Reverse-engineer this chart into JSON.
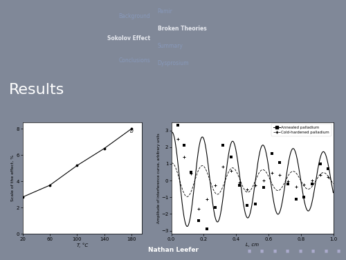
{
  "slide_bg": "#808898",
  "header_bg": "#4a5068",
  "footer_bg": "#383d55",
  "title_bar_bg": "#5a6078",
  "title_text": "Results",
  "title_color": "#ffffff",
  "title_fontsize": 16,
  "header_left_items": [
    "Background",
    "Sokolov Effect",
    "Conclusions"
  ],
  "header_right_items": [
    "Pamir",
    "Broken Theories",
    "Summary",
    "Dysprosium"
  ],
  "header_active_left": "Sokolov Effect",
  "header_active_right": "Broken Theories",
  "footer_text": "Nathan Leefer",
  "plot1": {
    "x": [
      20,
      60,
      100,
      140,
      180
    ],
    "y": [
      2.8,
      3.7,
      5.2,
      6.5,
      8.0
    ],
    "xlabel": "T, °C",
    "ylabel": "Scale of the effect, %",
    "xlim": [
      20,
      195
    ],
    "ylim": [
      0,
      8.5
    ],
    "xticks": [
      20,
      60,
      100,
      140,
      180
    ],
    "yticks": [
      0,
      2,
      4,
      6,
      8
    ],
    "label": "b"
  },
  "plot2": {
    "x_annealed_pts": [
      0.04,
      0.08,
      0.12,
      0.17,
      0.22,
      0.27,
      0.32,
      0.37,
      0.42,
      0.47,
      0.52,
      0.57,
      0.62,
      0.67,
      0.72,
      0.77,
      0.82,
      0.87,
      0.92,
      0.97
    ],
    "y_annealed_pts": [
      3.3,
      2.1,
      0.5,
      -2.4,
      -2.9,
      -1.6,
      2.1,
      1.4,
      -0.3,
      -1.5,
      -1.4,
      -0.4,
      1.6,
      1.1,
      -0.2,
      -1.1,
      -1.0,
      -0.2,
      1.0,
      0.7
    ],
    "x_cold_pts": [
      0.04,
      0.08,
      0.12,
      0.17,
      0.22,
      0.27,
      0.32,
      0.37,
      0.42,
      0.47,
      0.52,
      0.57,
      0.62,
      0.67,
      0.72,
      0.77,
      0.82,
      0.87,
      0.92,
      0.97
    ],
    "y_cold_pts": [
      2.5,
      1.4,
      0.4,
      -1.7,
      -1.1,
      -0.3,
      0.85,
      0.6,
      -0.1,
      -0.55,
      -0.3,
      0.0,
      0.45,
      0.35,
      -0.05,
      -0.38,
      -0.25,
      0.0,
      0.32,
      0.2
    ],
    "xlabel": "L, cm",
    "ylabel": "Amplitude of interference curve, arbitrary units",
    "xlim": [
      0,
      1.0
    ],
    "ylim": [
      -3.2,
      3.5
    ],
    "xticks": [
      0,
      0.2,
      0.4,
      0.6,
      0.8,
      1.0
    ],
    "yticks": [
      -3,
      -2,
      -1,
      0,
      1,
      2,
      3
    ],
    "legend": [
      "Annealed palladium",
      "Cold-hardened palladium"
    ],
    "ann_amp": 2.9,
    "ann_decay": 0.55,
    "ann_freq": 5.35,
    "ann_phase": 0.18,
    "cold_amp": 1.05,
    "cold_decay": 0.85,
    "cold_freq": 5.35,
    "cold_phase": 0.18
  }
}
